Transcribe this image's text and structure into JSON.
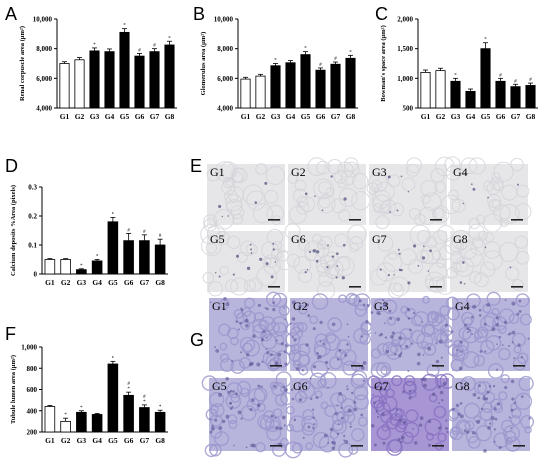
{
  "panels": {
    "A": "A",
    "B": "B",
    "C": "C",
    "D": "D",
    "E": "E",
    "F": "F",
    "G": "G"
  },
  "colors": {
    "control_bar": "#ffffff",
    "treated_bar": "#000000",
    "stain_e_bg": "#e6e6e8",
    "stain_g_bg": "#b8b5dd",
    "stain_g7_bg": "#a895d4"
  },
  "chart_data": [
    {
      "id": "A",
      "type": "bar",
      "ylabel": "Renal corpuscle area (μm²)",
      "categories": [
        "G1",
        "G2",
        "G3",
        "G4",
        "G5",
        "G6",
        "G7",
        "G8"
      ],
      "values": [
        7000,
        7250,
        7850,
        7800,
        9100,
        7500,
        7800,
        8250
      ],
      "errors": [
        120,
        150,
        200,
        180,
        250,
        180,
        200,
        250
      ],
      "fill": [
        "white",
        "white",
        "black",
        "black",
        "black",
        "black",
        "black",
        "black"
      ],
      "ylim": [
        4000,
        10000
      ],
      "yticks": [
        4000,
        6000,
        8000,
        10000
      ],
      "annotations": [
        "",
        "",
        "*",
        "",
        "*",
        "#",
        "#",
        "*"
      ]
    },
    {
      "id": "B",
      "type": "bar",
      "ylabel": "Glomerulus area (μm²)",
      "categories": [
        "G1",
        "G2",
        "G3",
        "G4",
        "G5",
        "G6",
        "G7",
        "G8"
      ],
      "values": [
        5950,
        6150,
        6850,
        7050,
        7600,
        6550,
        6950,
        7350
      ],
      "errors": [
        120,
        120,
        150,
        150,
        200,
        150,
        150,
        200
      ],
      "fill": [
        "white",
        "white",
        "black",
        "black",
        "black",
        "black",
        "black",
        "black"
      ],
      "ylim": [
        4000,
        10000
      ],
      "yticks": [
        4000,
        6000,
        8000,
        10000
      ],
      "annotations": [
        "",
        "",
        "*",
        "",
        "*",
        "#",
        "#",
        "*"
      ]
    },
    {
      "id": "C",
      "type": "bar",
      "ylabel": "Bowman's space area (μm²)",
      "categories": [
        "G1",
        "G2",
        "G3",
        "G4",
        "G5",
        "G6",
        "G7",
        "G8"
      ],
      "values": [
        1100,
        1130,
        950,
        780,
        1500,
        950,
        860,
        880
      ],
      "errors": [
        40,
        40,
        50,
        40,
        100,
        50,
        40,
        40
      ],
      "fill": [
        "white",
        "white",
        "black",
        "black",
        "black",
        "black",
        "black",
        "black"
      ],
      "ylim": [
        500,
        2000
      ],
      "yticks": [
        500,
        1000,
        1500,
        2000
      ],
      "annotations": [
        "",
        "",
        "*",
        "",
        "*",
        "#",
        "#",
        "#"
      ]
    },
    {
      "id": "D",
      "type": "bar",
      "ylabel": "Calcium deposits %Area (pixels)",
      "categories": [
        "G1",
        "G2",
        "G3",
        "G4",
        "G5",
        "G6",
        "G7",
        "G8"
      ],
      "values": [
        0.05,
        0.05,
        0.015,
        0.045,
        0.18,
        0.115,
        0.115,
        0.1
      ],
      "errors": [
        0.003,
        0.003,
        0.003,
        0.005,
        0.015,
        0.025,
        0.02,
        0.02
      ],
      "fill": [
        "white",
        "white",
        "black",
        "black",
        "black",
        "black",
        "black",
        "black"
      ],
      "ylim": [
        0,
        0.3
      ],
      "yticks": [
        0,
        0.1,
        0.2,
        0.3
      ],
      "annotations": [
        "",
        "",
        "*",
        "*",
        "*",
        "#",
        "#",
        "#"
      ]
    },
    {
      "id": "F",
      "type": "bar",
      "ylabel": "Tubule lumen area (μm²)",
      "categories": [
        "G1",
        "G2",
        "G3",
        "G4",
        "G5",
        "G6",
        "G7",
        "G8"
      ],
      "values": [
        440,
        300,
        385,
        365,
        840,
        545,
        430,
        385
      ],
      "errors": [
        10,
        30,
        15,
        10,
        25,
        30,
        25,
        20
      ],
      "fill": [
        "white",
        "white",
        "black",
        "black",
        "black",
        "black",
        "black",
        "black"
      ],
      "ylim": [
        200,
        1000
      ],
      "yticks": [
        200,
        400,
        600,
        800,
        1000
      ],
      "annotations": [
        "",
        "*",
        "*",
        "",
        "*",
        "# *",
        "# *",
        "*"
      ]
    }
  ],
  "panel_E": {
    "labels": [
      "G1",
      "G2",
      "G3",
      "G4",
      "G5",
      "G6",
      "G7",
      "G8"
    ]
  },
  "panel_G": {
    "labels": [
      "G1",
      "G2",
      "G3",
      "G4",
      "G5",
      "G6",
      "G7",
      "G8"
    ]
  }
}
